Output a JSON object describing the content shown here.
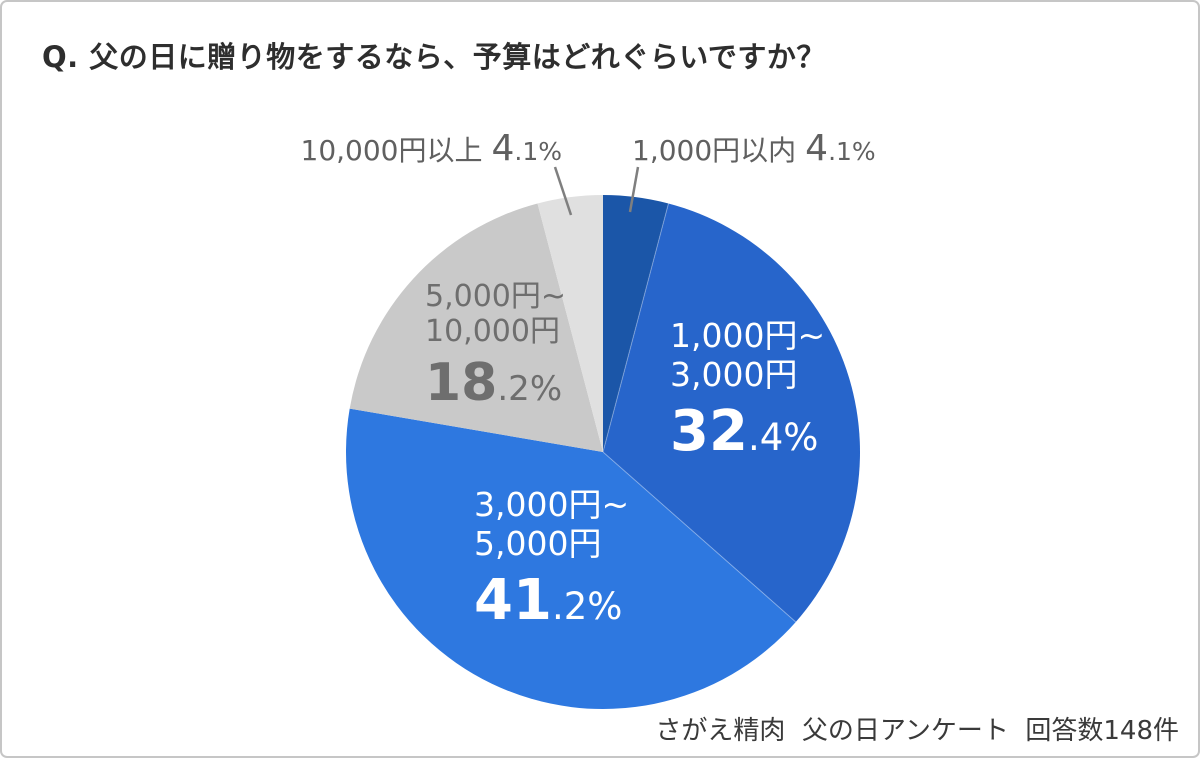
{
  "header": {
    "title": "Q. 父の日に贈り物をするなら、予算はどれぐらいですか？"
  },
  "footer": {
    "source": "さがえ精肉  父の日アンケート  回答数148件"
  },
  "colors": {
    "card_border": "#c6c6c6",
    "title_text": "#2e2e2e",
    "callout_text": "#606060",
    "leader_line": "#7f7f7f",
    "inside_label_white": "#ffffff",
    "inside_label_gray": "#6e6e6e",
    "footer_text": "#3a3a3a"
  },
  "chart_data": {
    "type": "pie",
    "title": "Q. 父の日に贈り物をするなら、予算はどれぐらいですか？",
    "unit": "%",
    "source_note": "さがえ精肉  父の日アンケート  回答数148件",
    "total_responses": 148,
    "start_angle_deg": 0,
    "direction": "clockwise",
    "legend": "none",
    "segments": [
      {
        "id": "under-1000",
        "label": "1,000円以内",
        "label_lines": [
          "1,000円以内"
        ],
        "value": 4.1,
        "color": "#1b56a8",
        "label_style": "callout-right"
      },
      {
        "id": "1000-3000",
        "label": "1,000円~3,000円",
        "label_lines": [
          "1,000円~",
          "3,000円"
        ],
        "value": 32.4,
        "color": "#2765cb",
        "label_style": "inside-white"
      },
      {
        "id": "3000-5000",
        "label": "3,000円~5,000円",
        "label_lines": [
          "3,000円~",
          "5,000円"
        ],
        "value": 41.2,
        "color": "#2e78e0",
        "label_style": "inside-white"
      },
      {
        "id": "5000-10000",
        "label": "5,000円~10,000円",
        "label_lines": [
          "5,000円~",
          "10,000円"
        ],
        "value": 18.2,
        "color": "#c9c9c9",
        "label_style": "inside-gray"
      },
      {
        "id": "over-10000",
        "label": "10,000円以上",
        "label_lines": [
          "10,000円以上"
        ],
        "value": 4.1,
        "color": "#e0e0e0",
        "label_style": "callout-left"
      }
    ]
  }
}
